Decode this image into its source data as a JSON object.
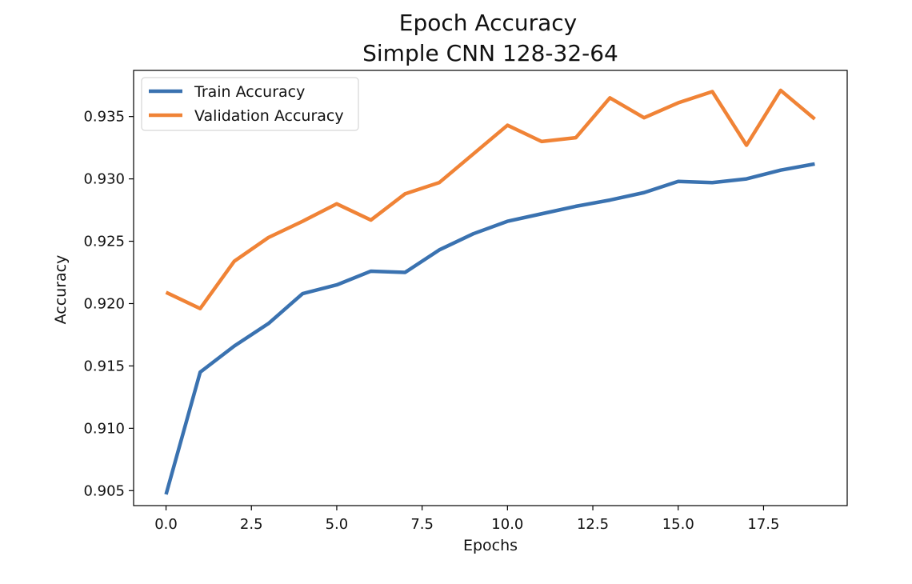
{
  "chart_data": {
    "type": "line",
    "title": "Epoch Accuracy",
    "subtitle": "Simple CNN 128-32-64",
    "xlabel": "Epochs",
    "ylabel": "Accuracy",
    "xlim": [
      -0.95,
      19.95
    ],
    "ylim": [
      0.9038,
      0.9387
    ],
    "xticks": [
      0.0,
      2.5,
      5.0,
      7.5,
      10.0,
      12.5,
      15.0,
      17.5
    ],
    "xtick_labels": [
      "0.0",
      "2.5",
      "5.0",
      "7.5",
      "10.0",
      "12.5",
      "15.0",
      "17.5"
    ],
    "yticks": [
      0.905,
      0.91,
      0.915,
      0.92,
      0.925,
      0.93,
      0.935
    ],
    "ytick_labels": [
      "0.905",
      "0.910",
      "0.915",
      "0.920",
      "0.925",
      "0.930",
      "0.935"
    ],
    "grid": false,
    "legend_position": "top-left",
    "x": [
      0,
      1,
      2,
      3,
      4,
      5,
      6,
      7,
      8,
      9,
      10,
      11,
      12,
      13,
      14,
      15,
      16,
      17,
      18,
      19
    ],
    "series": [
      {
        "name": "Train Accuracy",
        "color": "#3a72b0",
        "values": [
          0.9047,
          0.9145,
          0.9166,
          0.9184,
          0.9208,
          0.9215,
          0.9226,
          0.9225,
          0.9243,
          0.9256,
          0.9266,
          0.9272,
          0.9278,
          0.9283,
          0.9289,
          0.9298,
          0.9297,
          0.93,
          0.9307,
          0.9312
        ]
      },
      {
        "name": "Validation Accuracy",
        "color": "#f08336",
        "values": [
          0.9209,
          0.9196,
          0.9234,
          0.9253,
          0.9266,
          0.928,
          0.9267,
          0.9288,
          0.9297,
          0.932,
          0.9343,
          0.933,
          0.9333,
          0.9365,
          0.9349,
          0.9361,
          0.937,
          0.9327,
          0.9371,
          0.9348
        ]
      }
    ]
  }
}
